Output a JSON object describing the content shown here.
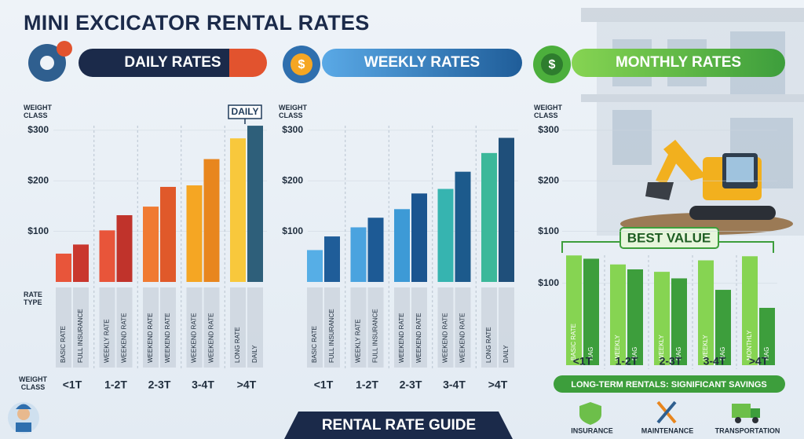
{
  "header": {
    "title": "MINI EXCICATOR RENTAL RATES"
  },
  "chart_data": [
    {
      "type": "bar",
      "title": "DAILY RATES",
      "y_label": "WEIGHT CLASS",
      "rate_type_label": "RATE TYPE",
      "x_label": "WEIGHT CLASS",
      "annotation": "DAILY",
      "groups": [
        "<1T",
        "1-2T",
        "2-3T",
        "3-4T",
        ">4T"
      ],
      "rate_labels": [
        "BASIC RATE",
        "FULL INSURANCE",
        "WEEKLY RATE",
        "WEEKEND RATE",
        "WEEKEND RATE",
        "WEEKEND RATE",
        "WEEKEND RATE",
        "WEEKEND RATE",
        "LONG RATE",
        "DAILY"
      ],
      "values": [
        56,
        74,
        102,
        132,
        149,
        188,
        191,
        243,
        284,
        309
      ],
      "colors": [
        "#e8553a",
        "#c9372e",
        "#e8553a",
        "#c0332b",
        "#f07a32",
        "#e0592a",
        "#f5a623",
        "#e8861e",
        "#f8c83c",
        "#2e5f7a"
      ],
      "ylim": [
        0,
        320
      ],
      "yticks": [
        {
          "value": 100,
          "label": "$100"
        },
        {
          "value": 200,
          "label": "$200"
        },
        {
          "value": 300,
          "label": "$300"
        }
      ]
    },
    {
      "type": "bar",
      "title": "WEEKLY RATES",
      "y_label": "WEIGHT CLASS",
      "groups": [
        "<1T",
        "1-2T",
        "2-3T",
        "3-4T",
        ">4T"
      ],
      "rate_labels": [
        "BASIC RATE",
        "FULL INSURANCE",
        "WEEKLY RATE",
        "FULL INSURANCE",
        "WEEKEND RATE",
        "WEEKEND RATE",
        "WEEKEND RATE",
        "WEEKEND RATE",
        "LONG RATE",
        "DAILY"
      ],
      "values": [
        63,
        90,
        108,
        127,
        144,
        175,
        184,
        218,
        255,
        285
      ],
      "colors": [
        "#56aee6",
        "#1f5d99",
        "#4aa3df",
        "#1d5a95",
        "#3d9ad6",
        "#1b5590",
        "#36b4b0",
        "#1c5a8c",
        "#3cb89a",
        "#1f4f7a"
      ],
      "ylim": [
        0,
        320
      ],
      "yticks": [
        {
          "value": 100,
          "label": "$100"
        },
        {
          "value": 200,
          "label": "$200"
        },
        {
          "value": 300,
          "label": "$300"
        }
      ]
    },
    {
      "type": "bar",
      "title": "MONTHLY RATES",
      "y_label": "WEIGHT CLASS",
      "ylim": [
        0,
        320
      ],
      "yticks": [
        {
          "value": 100,
          "label": "$100"
        },
        {
          "value": 200,
          "label": "$200"
        },
        {
          "value": 300,
          "label": "$300"
        }
      ],
      "inset": {
        "annotation": "BEST VALUE",
        "groups": [
          "<1T",
          "1-2T",
          "2-3T",
          "3-4T",
          ">4T"
        ],
        "rate_labels": [
          "BASIC RATE",
          "RAG",
          "WEEKLY",
          "RAG",
          "WEEKLY",
          "RAG",
          "WEEKLY",
          "RAG",
          "MONTHLY",
          "RAG"
        ],
        "values": [
          134,
          130,
          123,
          117,
          114,
          106,
          128,
          92,
          133,
          70
        ],
        "colors": [
          "#86d452",
          "#3d9e3c",
          "#86d452",
          "#3d9e3c",
          "#86d452",
          "#3d9e3c",
          "#86d452",
          "#3d9e3c",
          "#86d452",
          "#3d9e3c"
        ],
        "ylim": [
          0,
          140
        ],
        "yticks": [
          {
            "value": 100,
            "label": "$100"
          }
        ]
      }
    }
  ],
  "footer": {
    "title": "RENTAL RATE GUIDE"
  },
  "savings": {
    "title": "LONG-TERM RENTALS: SIGNIFICANT SAVINGS",
    "benefits": [
      "INSURANCE",
      "MAINTENANCE",
      "TRANSPORTATION"
    ]
  }
}
